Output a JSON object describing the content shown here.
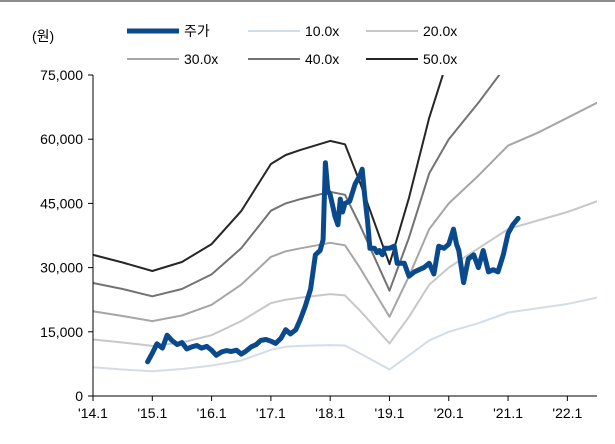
{
  "chart_data": {
    "type": "line",
    "title": "",
    "ylabel": "(원)",
    "xlabel": "",
    "ylim": [
      0,
      75000
    ],
    "yticks": [
      "0",
      "15,000",
      "30,000",
      "45,000",
      "60,000",
      "75,000"
    ],
    "ytick_values": [
      0,
      15000,
      30000,
      45000,
      60000,
      75000
    ],
    "xlim": [
      2014.0,
      2022.5
    ],
    "xticks": [
      "'14.1",
      "'15.1",
      "'16.1",
      "'17.1",
      "'18.1",
      "'19.1",
      "'20.1",
      "'21.1",
      "'22.1"
    ],
    "xtick_values": [
      2014.0,
      2015.0,
      2016.0,
      2017.0,
      2018.0,
      2019.0,
      2020.0,
      2021.0,
      2022.0
    ],
    "grid": false,
    "legend_position": "top",
    "series": [
      {
        "name": "주가",
        "color": "#0a4a8c",
        "points": [
          [
            2014.92,
            8000
          ],
          [
            2015.0,
            10000
          ],
          [
            2015.08,
            12200
          ],
          [
            2015.17,
            11200
          ],
          [
            2015.25,
            14200
          ],
          [
            2015.33,
            13000
          ],
          [
            2015.42,
            12000
          ],
          [
            2015.5,
            12500
          ],
          [
            2015.58,
            11000
          ],
          [
            2015.67,
            11500
          ],
          [
            2015.75,
            11800
          ],
          [
            2015.83,
            11200
          ],
          [
            2015.92,
            11600
          ],
          [
            2016.0,
            10700
          ],
          [
            2016.08,
            9500
          ],
          [
            2016.17,
            10300
          ],
          [
            2016.25,
            10600
          ],
          [
            2016.33,
            10400
          ],
          [
            2016.42,
            10700
          ],
          [
            2016.5,
            9800
          ],
          [
            2016.58,
            10500
          ],
          [
            2016.67,
            11500
          ],
          [
            2016.75,
            12000
          ],
          [
            2016.83,
            13000
          ],
          [
            2016.92,
            13200
          ],
          [
            2017.0,
            12800
          ],
          [
            2017.08,
            12300
          ],
          [
            2017.17,
            13500
          ],
          [
            2017.25,
            15500
          ],
          [
            2017.33,
            14500
          ],
          [
            2017.42,
            15500
          ],
          [
            2017.5,
            18000
          ],
          [
            2017.58,
            21000
          ],
          [
            2017.67,
            25000
          ],
          [
            2017.75,
            33000
          ],
          [
            2017.83,
            34000
          ],
          [
            2017.88,
            36500
          ],
          [
            2017.92,
            54500
          ],
          [
            2017.96,
            48000
          ],
          [
            2018.0,
            47000
          ],
          [
            2018.05,
            44000
          ],
          [
            2018.08,
            42000
          ],
          [
            2018.13,
            40000
          ],
          [
            2018.17,
            46000
          ],
          [
            2018.21,
            43000
          ],
          [
            2018.25,
            45000
          ],
          [
            2018.33,
            45500
          ],
          [
            2018.42,
            49500
          ],
          [
            2018.5,
            51500
          ],
          [
            2018.54,
            53000
          ],
          [
            2018.58,
            47000
          ],
          [
            2018.63,
            41000
          ],
          [
            2018.67,
            34500
          ],
          [
            2018.75,
            34500
          ],
          [
            2018.79,
            33500
          ],
          [
            2018.83,
            34000
          ],
          [
            2018.88,
            33000
          ],
          [
            2018.92,
            34500
          ],
          [
            2019.0,
            34500
          ],
          [
            2019.08,
            35000
          ],
          [
            2019.13,
            31000
          ],
          [
            2019.17,
            31000
          ],
          [
            2019.25,
            31000
          ],
          [
            2019.33,
            28000
          ],
          [
            2019.42,
            29000
          ],
          [
            2019.5,
            29500
          ],
          [
            2019.58,
            30000
          ],
          [
            2019.67,
            31000
          ],
          [
            2019.75,
            28500
          ],
          [
            2019.83,
            35000
          ],
          [
            2019.92,
            34500
          ],
          [
            2020.0,
            35500
          ],
          [
            2020.08,
            39000
          ],
          [
            2020.13,
            35500
          ],
          [
            2020.17,
            34000
          ],
          [
            2020.25,
            26500
          ],
          [
            2020.33,
            32000
          ],
          [
            2020.42,
            33000
          ],
          [
            2020.5,
            30000
          ],
          [
            2020.58,
            34000
          ],
          [
            2020.67,
            29000
          ],
          [
            2020.75,
            29500
          ],
          [
            2020.83,
            29000
          ],
          [
            2020.92,
            33000
          ],
          [
            2021.0,
            38000
          ],
          [
            2021.08,
            40000
          ],
          [
            2021.17,
            41500
          ]
        ]
      },
      {
        "name": "10.0x",
        "color": "#d3dde8",
        "points": [
          [
            2014.0,
            6700
          ],
          [
            2014.5,
            6200
          ],
          [
            2015.0,
            5800
          ],
          [
            2015.5,
            6300
          ],
          [
            2016.0,
            7100
          ],
          [
            2016.5,
            8300
          ],
          [
            2017.0,
            10800
          ],
          [
            2017.25,
            11500
          ],
          [
            2017.5,
            11700
          ],
          [
            2018.0,
            11900
          ],
          [
            2018.25,
            11800
          ],
          [
            2018.5,
            10000
          ],
          [
            2019.0,
            6200
          ],
          [
            2019.33,
            9500
          ],
          [
            2019.67,
            13000
          ],
          [
            2020.0,
            15000
          ],
          [
            2020.5,
            17000
          ],
          [
            2021.0,
            19500
          ],
          [
            2021.5,
            20500
          ],
          [
            2022.0,
            21500
          ],
          [
            2022.5,
            23000
          ]
        ]
      },
      {
        "name": "20.0x",
        "color": "#c8c8c8",
        "points": [
          [
            2014.0,
            13200
          ],
          [
            2014.5,
            12500
          ],
          [
            2015.0,
            11700
          ],
          [
            2015.5,
            12500
          ],
          [
            2016.0,
            14200
          ],
          [
            2016.5,
            17500
          ],
          [
            2017.0,
            21700
          ],
          [
            2017.25,
            22500
          ],
          [
            2017.5,
            23000
          ],
          [
            2018.0,
            23800
          ],
          [
            2018.25,
            23500
          ],
          [
            2018.5,
            20000
          ],
          [
            2019.0,
            12300
          ],
          [
            2019.33,
            18500
          ],
          [
            2019.67,
            26000
          ],
          [
            2020.0,
            30000
          ],
          [
            2020.5,
            34500
          ],
          [
            2021.0,
            39000
          ],
          [
            2021.5,
            41000
          ],
          [
            2022.0,
            43000
          ],
          [
            2022.5,
            45500
          ]
        ]
      },
      {
        "name": "30.0x",
        "color": "#a6a6a6",
        "points": [
          [
            2014.0,
            19800
          ],
          [
            2014.5,
            18700
          ],
          [
            2015.0,
            17500
          ],
          [
            2015.5,
            18800
          ],
          [
            2016.0,
            21300
          ],
          [
            2016.5,
            26000
          ],
          [
            2017.0,
            32500
          ],
          [
            2017.25,
            33800
          ],
          [
            2017.5,
            34500
          ],
          [
            2018.0,
            35800
          ],
          [
            2018.25,
            35200
          ],
          [
            2018.5,
            30000
          ],
          [
            2019.0,
            18500
          ],
          [
            2019.33,
            28000
          ],
          [
            2019.67,
            39000
          ],
          [
            2020.0,
            45000
          ],
          [
            2020.5,
            51500
          ],
          [
            2021.0,
            58500
          ],
          [
            2021.5,
            61500
          ],
          [
            2022.0,
            65000
          ],
          [
            2022.5,
            68500
          ]
        ]
      },
      {
        "name": "40.0x",
        "color": "#737373",
        "points": [
          [
            2014.0,
            26400
          ],
          [
            2014.5,
            25000
          ],
          [
            2015.0,
            23300
          ],
          [
            2015.5,
            25000
          ],
          [
            2016.0,
            28400
          ],
          [
            2016.5,
            34500
          ],
          [
            2017.0,
            43300
          ],
          [
            2017.25,
            45000
          ],
          [
            2017.5,
            46000
          ],
          [
            2018.0,
            47700
          ],
          [
            2018.25,
            47000
          ],
          [
            2018.5,
            40000
          ],
          [
            2019.0,
            24600
          ],
          [
            2019.33,
            37000
          ],
          [
            2019.67,
            52000
          ],
          [
            2020.0,
            60000
          ],
          [
            2020.5,
            68500
          ],
          [
            2020.85,
            75000
          ]
        ]
      },
      {
        "name": "50.0x",
        "color": "#262626",
        "points": [
          [
            2014.0,
            33000
          ],
          [
            2014.5,
            31200
          ],
          [
            2015.0,
            29200
          ],
          [
            2015.5,
            31300
          ],
          [
            2016.0,
            35500
          ],
          [
            2016.5,
            43200
          ],
          [
            2017.0,
            54200
          ],
          [
            2017.25,
            56300
          ],
          [
            2017.5,
            57500
          ],
          [
            2018.0,
            59600
          ],
          [
            2018.25,
            58800
          ],
          [
            2018.5,
            50000
          ],
          [
            2019.0,
            30800
          ],
          [
            2019.33,
            46300
          ],
          [
            2019.67,
            65000
          ],
          [
            2019.9,
            75000
          ]
        ]
      }
    ]
  }
}
